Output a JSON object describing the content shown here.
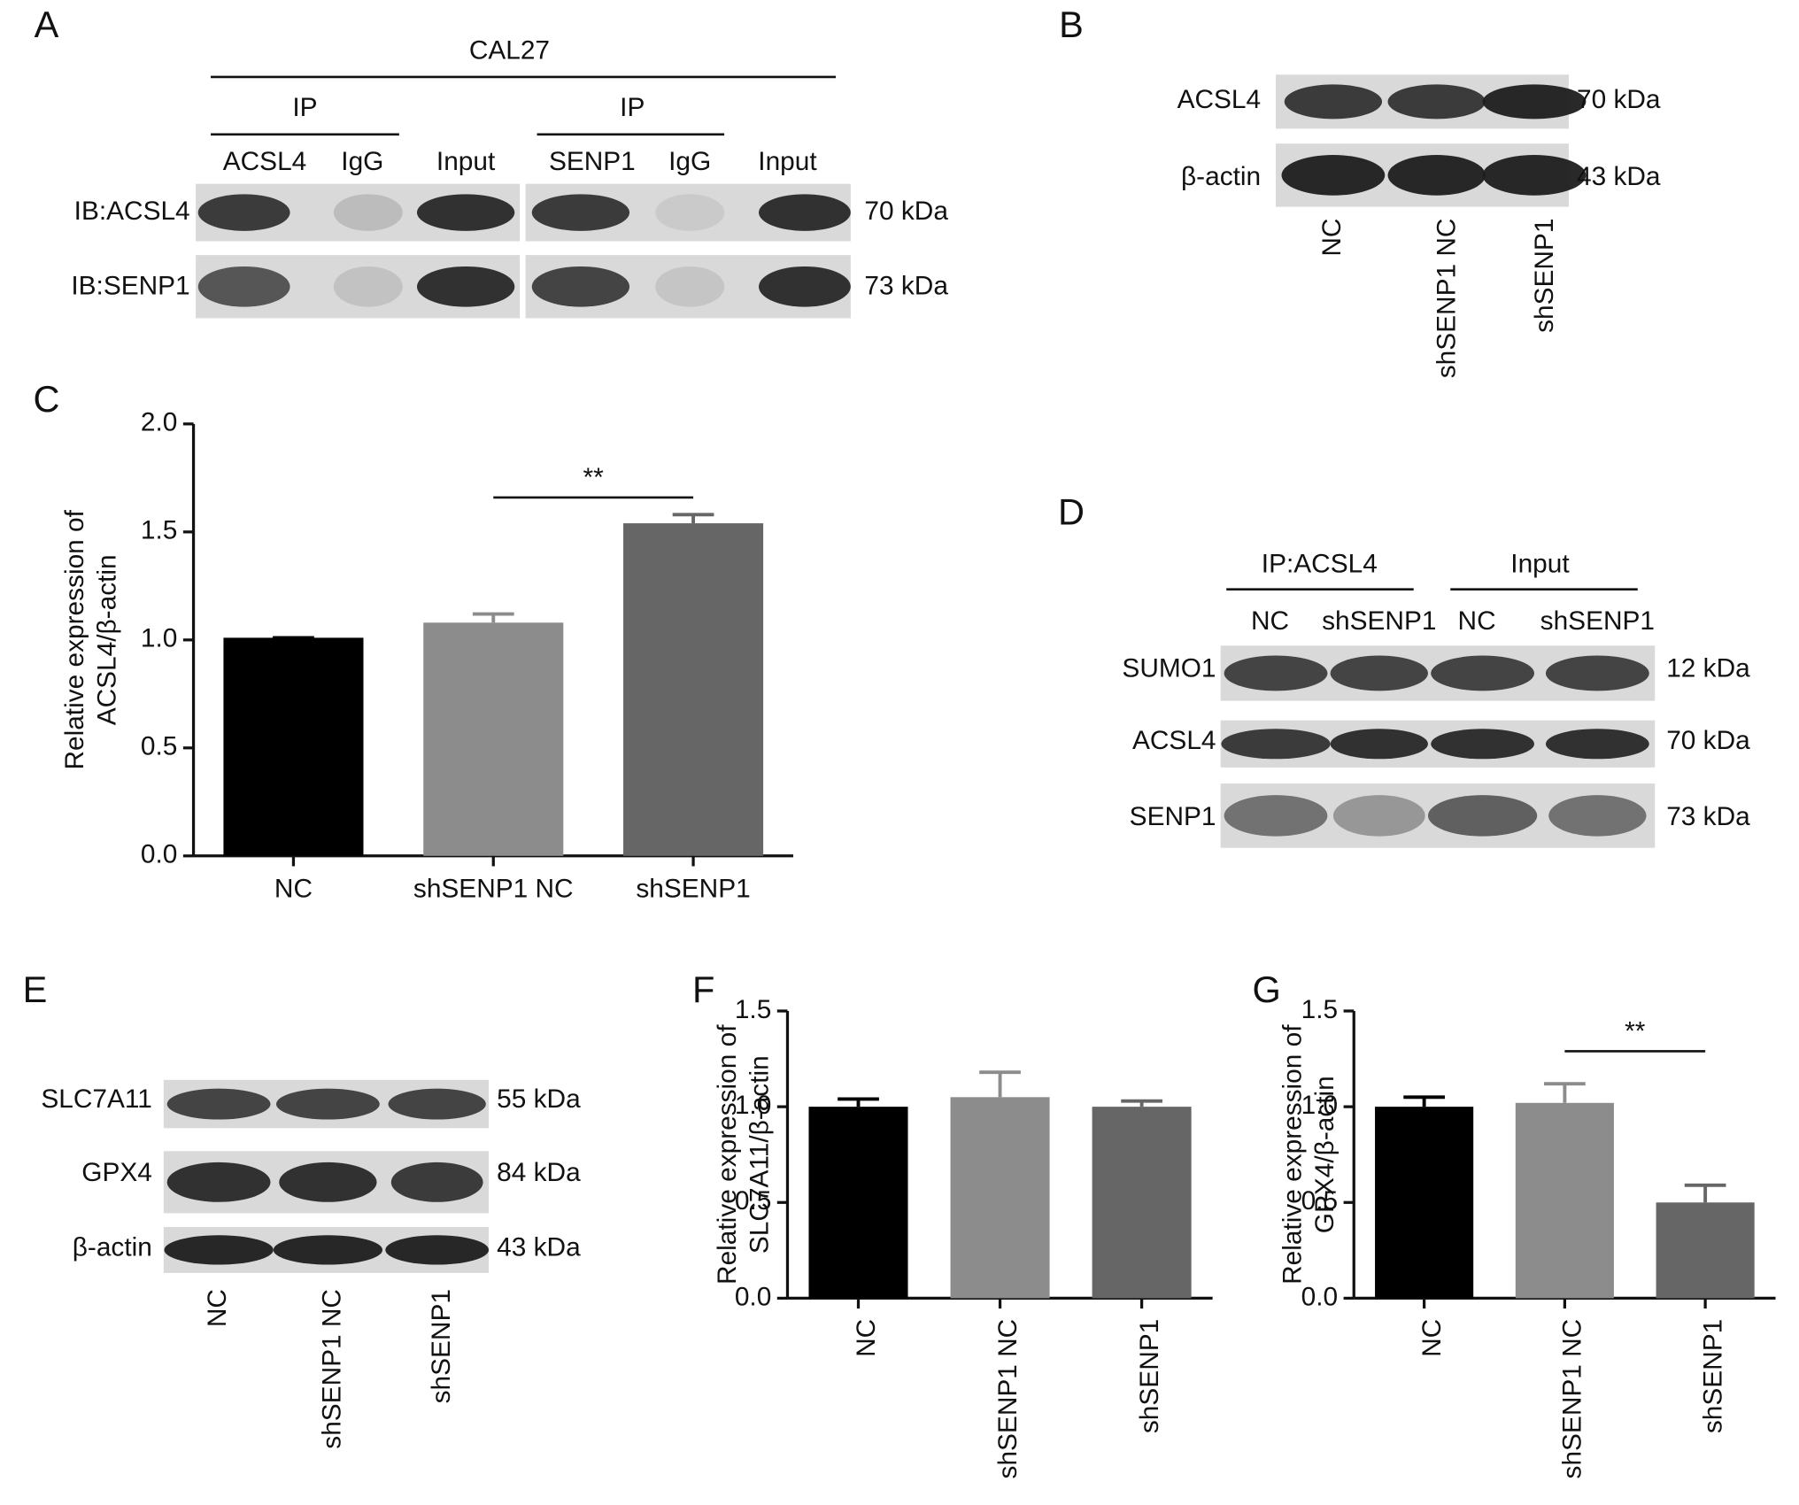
{
  "panels": {
    "A": {
      "label": "A",
      "header": "CAL27",
      "groups": [
        "IP",
        "IP"
      ],
      "lanes": [
        "ACSL4",
        "IgG",
        "Input",
        "SENP1",
        "IgG",
        "Input"
      ],
      "rows": [
        {
          "label": "IB:ACSL4",
          "size": "70 kDa"
        },
        {
          "label": "IB:SENP1",
          "size": "73 kDa"
        }
      ]
    },
    "B": {
      "label": "B",
      "lanes": [
        "NC",
        "shSENP1 NC",
        "shSENP1"
      ],
      "rows": [
        {
          "label": "ACSL4",
          "size": "70 kDa"
        },
        {
          "label": "β-actin",
          "size": "43 kDa"
        }
      ]
    },
    "D": {
      "label": "D",
      "groups": [
        "IP:ACSL4",
        "Input"
      ],
      "lanes": [
        "NC",
        "shSENP1",
        "NC",
        "shSENP1"
      ],
      "rows": [
        {
          "label": "SUMO1",
          "size": "12 kDa"
        },
        {
          "label": "ACSL4",
          "size": "70 kDa"
        },
        {
          "label": "SENP1",
          "size": "73 kDa"
        }
      ]
    },
    "E": {
      "label": "E",
      "lanes": [
        "NC",
        "shSENP1 NC",
        "shSENP1"
      ],
      "rows": [
        {
          "label": "SLC7A11",
          "size": "55 kDa"
        },
        {
          "label": "GPX4",
          "size": "84 kDa"
        },
        {
          "label": "β-actin",
          "size": "43 kDa"
        }
      ]
    }
  },
  "chart_data": [
    {
      "type": "bar",
      "panel": "C",
      "ylabel": [
        "Relative expression of",
        "ACSL4/β-actin"
      ],
      "categories": [
        "NC",
        "shSENP1 NC",
        "shSENP1"
      ],
      "values": [
        1.01,
        1.08,
        1.54
      ],
      "errors": [
        0,
        0.04,
        0.04
      ],
      "colors": [
        "#000000",
        "#8c8c8c",
        "#666666"
      ],
      "ylim": [
        0,
        2
      ],
      "yticks": [
        {
          "value": 0,
          "label": "0.0"
        },
        0.5,
        {
          "value": 1,
          "label": "1.0"
        },
        1.5,
        {
          "value": 2,
          "label": "2.0"
        }
      ],
      "annotations": [
        "**"
      ]
    },
    {
      "type": "bar",
      "panel": "F",
      "ylabel": [
        "Relative expression of",
        "SLC7A11/β-actin"
      ],
      "categories": [
        "NC",
        "shSENP1 NC",
        "shSENP1"
      ],
      "values": [
        1.0,
        1.05,
        1.0
      ],
      "errors": [
        0.04,
        0.13,
        0.03
      ],
      "colors": [
        "#000000",
        "#8c8c8c",
        "#666666"
      ],
      "ylim": [
        0,
        1.5
      ],
      "yticks": [
        {
          "value": 0,
          "label": "0.0"
        },
        0.5,
        {
          "value": 1,
          "label": "1.0"
        },
        1.5
      ],
      "annotations": []
    },
    {
      "type": "bar",
      "panel": "G",
      "ylabel": [
        "Relative expression of",
        "GPX4/β-actin"
      ],
      "categories": [
        "NC",
        "shSENP1 NC",
        "shSENP1"
      ],
      "values": [
        1.0,
        1.02,
        0.5
      ],
      "errors": [
        0.05,
        0.1,
        0.09
      ],
      "colors": [
        "#000000",
        "#8c8c8c",
        "#666666"
      ],
      "ylim": [
        0,
        1.5
      ],
      "yticks": [
        {
          "value": 0,
          "label": "0.0"
        },
        0.5,
        {
          "value": 1,
          "label": "1.0"
        },
        1.5
      ],
      "annotations": [
        "**"
      ]
    }
  ]
}
